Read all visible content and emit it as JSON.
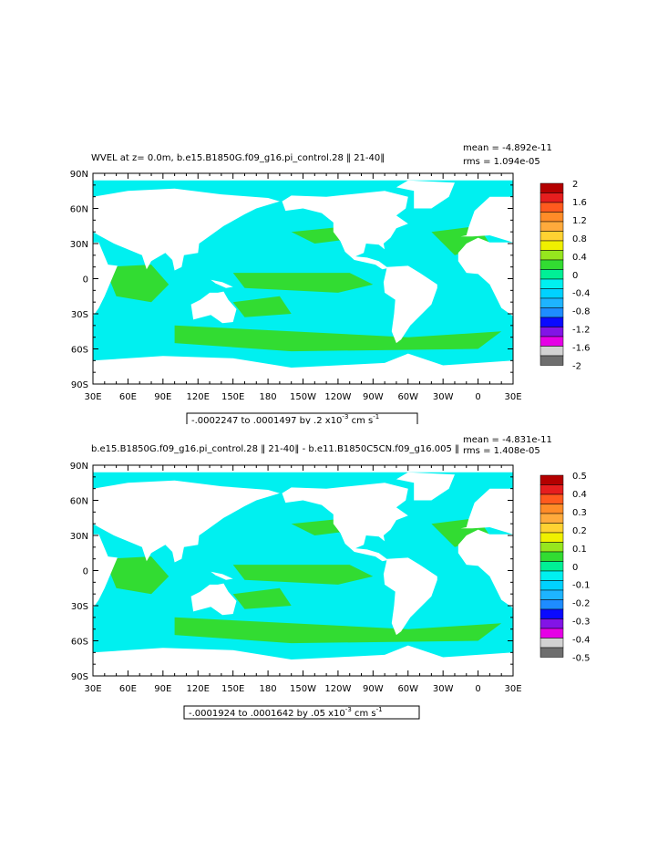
{
  "panels": [
    {
      "title": "WVEL at z=    0.0m, b.e15.B1850G.f09_g16.pi_control.28 ‖ 21-40‖",
      "mean_label": "mean = -4.892e-11",
      "rms_label": "rms = 1.094e-05",
      "range_label": "-.0002247 to .0001497 by .2 x10",
      "range_exp": "-3",
      "range_units": " cm s",
      "range_units_exp": "-1"
    },
    {
      "title": "b.e15.B1850G.f09_g16.pi_control.28 ‖ 21-40‖ - b.e11.B1850C5CN.f09_g16.005 ‖",
      "mean_label": "mean = -4.831e-11",
      "rms_label": "rms = 1.408e-05",
      "range_label": "-.0001924 to .0001642 by .05 x10",
      "range_exp": "-3",
      "range_units": " cm s",
      "range_units_exp": "-1"
    }
  ],
  "chart_data": [
    {
      "type": "heatmap",
      "title": "WVEL at z=    0.0m, b.e15.B1850G.f09_g16.pi_control.28 ‖ 21-40‖",
      "x_ticks": [
        "30E",
        "60E",
        "90E",
        "120E",
        "150E",
        "180",
        "150W",
        "120W",
        "90W",
        "60W",
        "30W",
        "0",
        "30E"
      ],
      "y_ticks": [
        "90N",
        "60N",
        "30N",
        "0",
        "30S",
        "60S",
        "90S"
      ],
      "xlim": [
        30,
        390
      ],
      "ylim": [
        -90,
        90
      ],
      "colorbar_labels": [
        "2",
        "1.6",
        "1.2",
        "0.8",
        "0.4",
        "0",
        "-0.4",
        "-0.8",
        "-1.2",
        "-1.6",
        "-2"
      ],
      "colorbar_colors": [
        "#b40000",
        "#e61e1e",
        "#ff5a1e",
        "#ff8c28",
        "#ffaa3c",
        "#ffd232",
        "#f0f000",
        "#96e61e",
        "#32dc32",
        "#00f096",
        "#00f0f0",
        "#00d2ff",
        "#1eb4ff",
        "#1e8cff",
        "#0a0aff",
        "#8214e6",
        "#e600e6",
        "#d2d2d2",
        "#6e6e6e"
      ],
      "mean": -4.892e-11,
      "rms": 1.094e-05,
      "min": -0.0002247,
      "max": 0.0001497
    },
    {
      "type": "heatmap",
      "title": "b.e15.B1850G.f09_g16.pi_control.28 ‖ 21-40‖ - b.e11.B1850C5CN.f09_g16.005 ‖",
      "x_ticks": [
        "30E",
        "60E",
        "90E",
        "120E",
        "150E",
        "180",
        "150W",
        "120W",
        "90W",
        "60W",
        "30W",
        "0",
        "30E"
      ],
      "y_ticks": [
        "90N",
        "60N",
        "30N",
        "0",
        "30S",
        "60S",
        "90S"
      ],
      "xlim": [
        30,
        390
      ],
      "ylim": [
        -90,
        90
      ],
      "colorbar_labels": [
        "0.5",
        "0.4",
        "0.3",
        "0.2",
        "0.1",
        "0",
        "-0.1",
        "-0.2",
        "-0.3",
        "-0.4",
        "-0.5"
      ],
      "colorbar_colors": [
        "#b40000",
        "#e61e1e",
        "#ff5a1e",
        "#ff8c28",
        "#ffaa3c",
        "#ffd232",
        "#f0f000",
        "#96e61e",
        "#32dc32",
        "#00f096",
        "#00f0f0",
        "#00d2ff",
        "#1eb4ff",
        "#1e8cff",
        "#0a0aff",
        "#8214e6",
        "#e600e6",
        "#d2d2d2",
        "#6e6e6e"
      ],
      "mean": -4.831e-11,
      "rms": 1.408e-05,
      "min": -0.0001924,
      "max": 0.0001642
    }
  ],
  "colors": {
    "ocean": "#00f0f0",
    "upwelling": "#32dc32",
    "land": "#ffffff"
  }
}
